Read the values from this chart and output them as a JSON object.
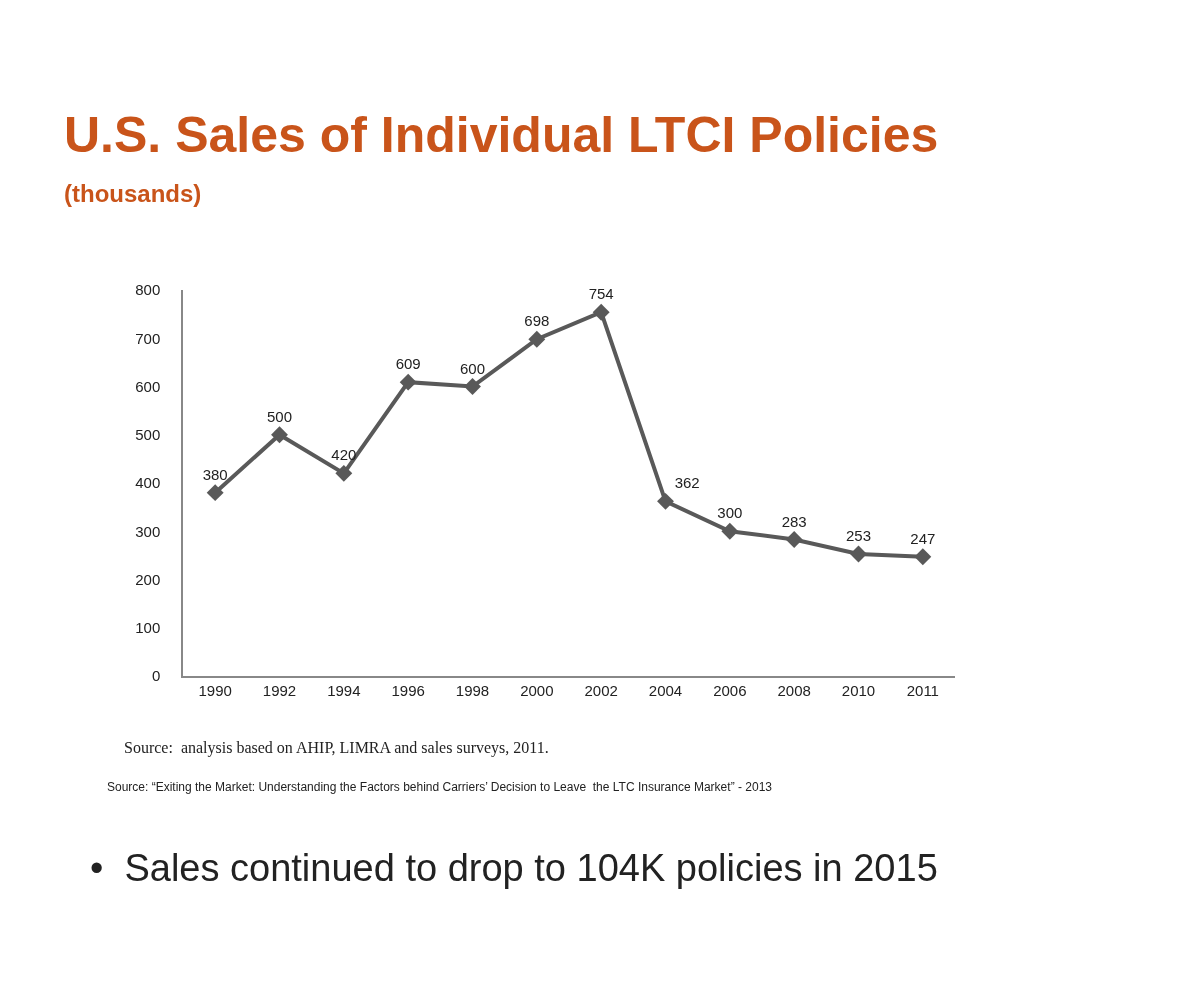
{
  "chart_data": {
    "type": "line",
    "title": "U.S. Sales of Individual LTCI Policies",
    "subtitle": "(thousands)",
    "categories": [
      "1990",
      "1992",
      "1994",
      "1996",
      "1998",
      "2000",
      "2002",
      "2004",
      "2006",
      "2008",
      "2010",
      "2011"
    ],
    "values": [
      380,
      500,
      420,
      609,
      600,
      698,
      754,
      362,
      300,
      283,
      253,
      247
    ],
    "color": "#595959",
    "marker": "diamond",
    "line_style": "solid",
    "data_labels": true,
    "grid": false,
    "legend": false,
    "ylim": [
      0,
      800
    ],
    "yticks": [
      0,
      100,
      200,
      300,
      400,
      500,
      600,
      700,
      800
    ],
    "annotations": [
      "Source:  analysis based on AHIP, LIMRA and sales surveys, 2011.",
      "Source: “Exiting the Market: Understanding the Factors behind Carriers’ Decision to Leave  the LTC Insurance Market” - 2013",
      "•  Sales continued to drop to 104K policies in 2015"
    ]
  }
}
